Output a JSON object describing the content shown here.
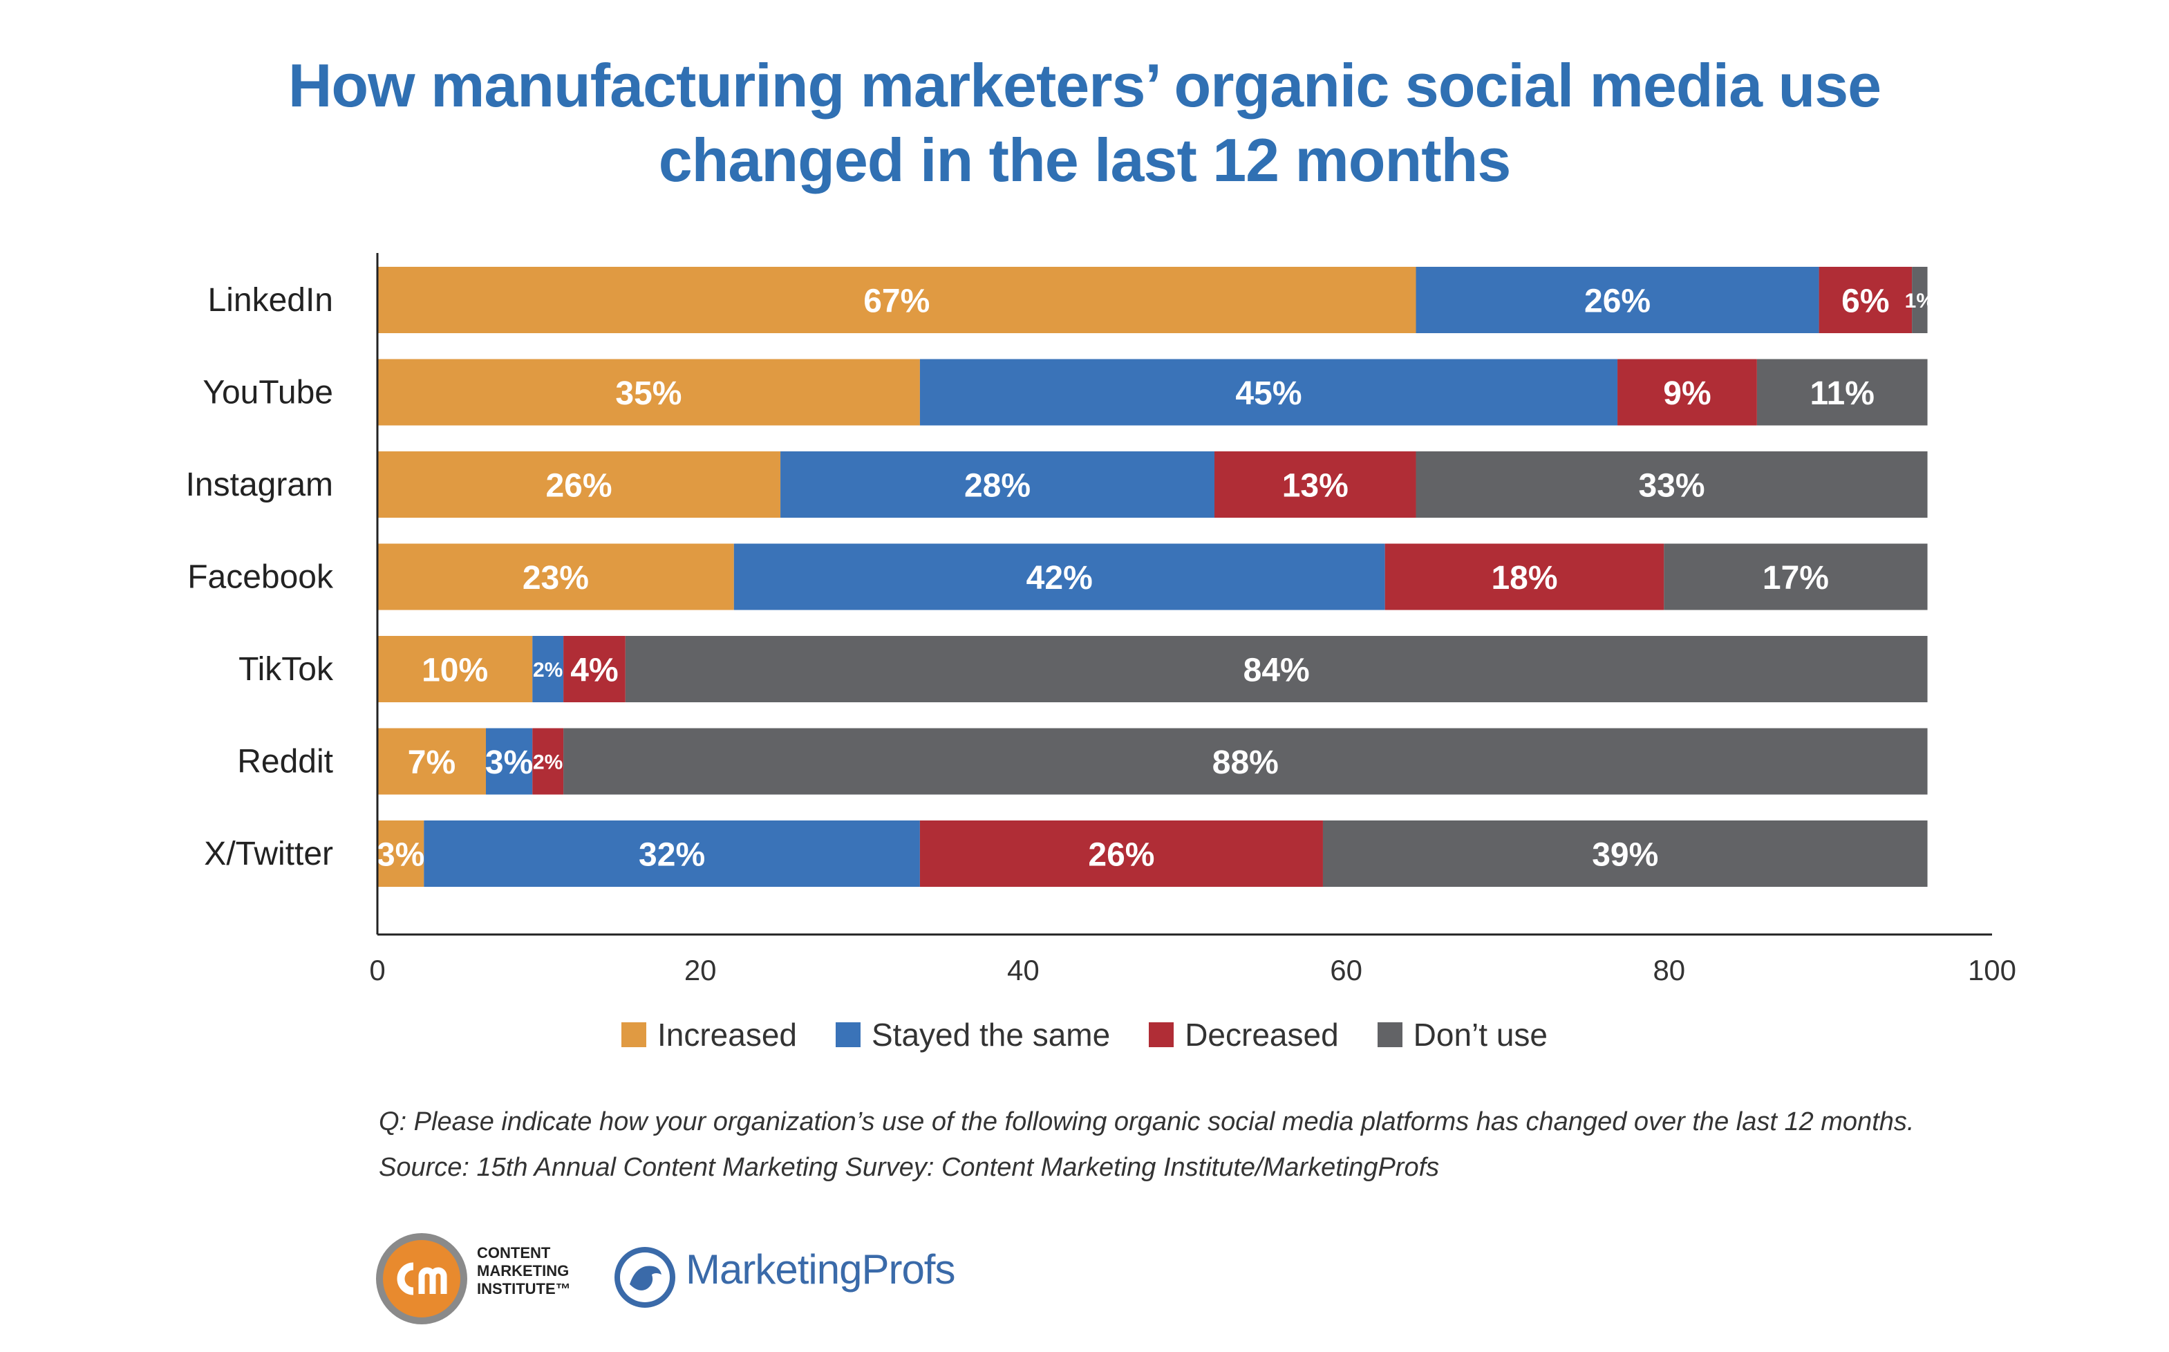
{
  "chart_data": {
    "type": "bar",
    "orientation": "horizontal",
    "stacked": true,
    "title": "How manufacturing marketers’ organic social media use changed in the last 12 months",
    "title_lines": [
      "How manufacturing marketers’ organic social media use",
      "changed in the last 12 months"
    ],
    "categories": [
      "LinkedIn",
      "YouTube",
      "Instagram",
      "Facebook",
      "TikTok",
      "Reddit",
      "X/Twitter"
    ],
    "series": [
      {
        "name": "Increased",
        "color": "#e09a42",
        "values": [
          67,
          35,
          26,
          23,
          10,
          7,
          3
        ]
      },
      {
        "name": "Stayed the same",
        "color": "#3a73b8",
        "values": [
          26,
          45,
          28,
          42,
          2,
          3,
          32
        ]
      },
      {
        "name": "Decreased",
        "color": "#b02d36",
        "values": [
          6,
          9,
          13,
          18,
          4,
          2,
          26
        ]
      },
      {
        "name": "Don’t use",
        "color": "#626366",
        "values": [
          1,
          11,
          33,
          17,
          84,
          88,
          39
        ]
      }
    ],
    "xlim": [
      0,
      100
    ],
    "xticks": [
      0,
      20,
      40,
      60,
      80,
      100
    ],
    "xlabel": "",
    "ylabel": "",
    "legend": "bottom-center",
    "grid": false
  },
  "footnote": {
    "question": "Q: Please indicate how your organization’s use of the following organic social media platforms has changed over the last 12 months.",
    "source": "Source: 15th Annual Content Marketing Survey: Content Marketing Institute/MarketingProfs"
  },
  "logos": {
    "cmi_text": "CONTENT\nMARKETING\nINSTITUTE™",
    "mp_text": "MarketingProfs"
  }
}
